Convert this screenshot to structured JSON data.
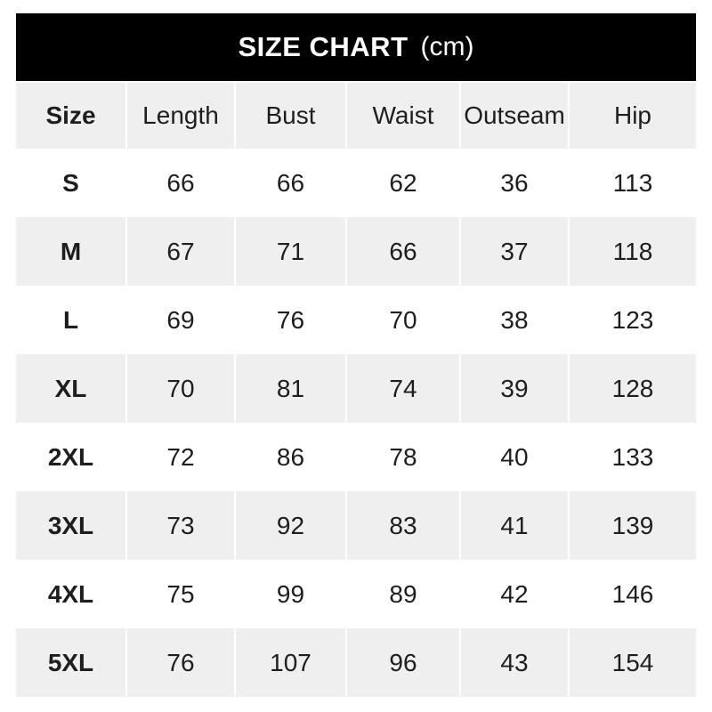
{
  "banner": {
    "title": "SIZE CHART",
    "unit": "(cm)"
  },
  "table": {
    "columns": [
      "Size",
      "Length",
      "Bust",
      "Waist",
      "Outseam",
      "Hip"
    ],
    "rows": [
      {
        "size": "S",
        "values": [
          "66",
          "66",
          "62",
          "36",
          "113"
        ]
      },
      {
        "size": "M",
        "values": [
          "67",
          "71",
          "66",
          "37",
          "118"
        ]
      },
      {
        "size": "L",
        "values": [
          "69",
          "76",
          "70",
          "38",
          "123"
        ]
      },
      {
        "size": "XL",
        "values": [
          "70",
          "81",
          "74",
          "39",
          "128"
        ]
      },
      {
        "size": "2XL",
        "values": [
          "72",
          "86",
          "78",
          "40",
          "133"
        ]
      },
      {
        "size": "3XL",
        "values": [
          "73",
          "92",
          "83",
          "41",
          "139"
        ]
      },
      {
        "size": "4XL",
        "values": [
          "75",
          "99",
          "89",
          "42",
          "146"
        ]
      },
      {
        "size": "5XL",
        "values": [
          "76",
          "107",
          "96",
          "43",
          "154"
        ]
      }
    ]
  },
  "colors": {
    "banner_bg": "#000000",
    "banner_text": "#ffffff",
    "row_alt_bg": "#efefef",
    "text": "#1e1e1e",
    "page_bg": "#ffffff"
  },
  "chart_data": {
    "type": "table",
    "title": "SIZE CHART (cm)",
    "columns": [
      "Size",
      "Length",
      "Bust",
      "Waist",
      "Outseam",
      "Hip"
    ],
    "rows": [
      [
        "S",
        66,
        66,
        62,
        36,
        113
      ],
      [
        "M",
        67,
        71,
        66,
        37,
        118
      ],
      [
        "L",
        69,
        76,
        70,
        38,
        123
      ],
      [
        "XL",
        70,
        81,
        74,
        39,
        128
      ],
      [
        "2XL",
        72,
        86,
        78,
        40,
        133
      ],
      [
        "3XL",
        73,
        92,
        83,
        41,
        139
      ],
      [
        "4XL",
        75,
        99,
        89,
        42,
        146
      ],
      [
        "5XL",
        76,
        107,
        96,
        43,
        154
      ]
    ]
  }
}
